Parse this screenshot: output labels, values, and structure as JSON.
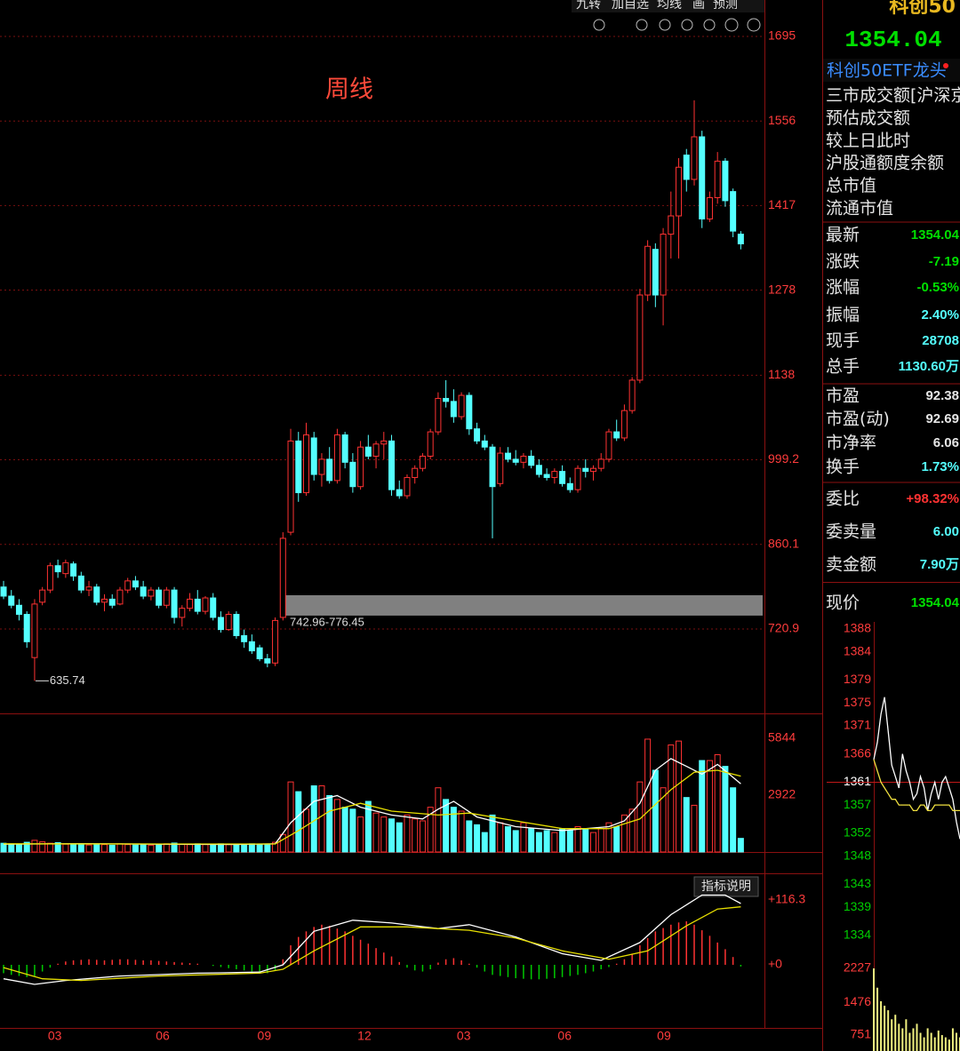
{
  "toolbar": [
    "九转",
    "加自选",
    "均线",
    "画",
    "预测"
  ],
  "indicator_button": "指标说明",
  "chart_data": [
    {
      "type": "candlestick",
      "annotation": "周线",
      "up_color": "#ff3232",
      "down_color": "#54ffff",
      "grid": true,
      "xlim": [
        -0.46,
        98.05
      ],
      "ylim": [
        582.2,
        1754.9
      ],
      "yticks": [
        1695,
        1556,
        1417,
        1278,
        1138,
        999.2,
        860.1,
        720.9
      ],
      "xticks": [
        {
          "value": 6.6,
          "label": "03"
        },
        {
          "value": 20.5,
          "label": "06"
        },
        {
          "value": 33.6,
          "label": "09"
        },
        {
          "value": 46.5,
          "label": "12"
        },
        {
          "value": 59.3,
          "label": "03"
        },
        {
          "value": 72.3,
          "label": "06"
        },
        {
          "value": 85.1,
          "label": "09"
        }
      ],
      "band": {
        "values": [
          742.96,
          776.45
        ],
        "label": "742.96-776.45",
        "color": "#808080"
      },
      "open": [
        790,
        775,
        760,
        745,
        674,
        765,
        785,
        825,
        812,
        828,
        808,
        785,
        790,
        765,
        770,
        762,
        785,
        800,
        790,
        775,
        785,
        760,
        785,
        740,
        755,
        770,
        750,
        772,
        740,
        720,
        745,
        710,
        700,
        690,
        672,
        665,
        740,
        880,
        1030,
        945,
        1035,
        975,
        1000,
        965,
        1040,
        995,
        955,
        1020,
        1005,
        1025,
        1030,
        950,
        940,
        970,
        985,
        1005,
        1045,
        1100,
        1095,
        1070,
        1105,
        1050,
        1030,
        1020,
        960,
        1010,
        1000,
        995,
        1005,
        990,
        975,
        970,
        980,
        960,
        950,
        985,
        980,
        985,
        1000,
        1045,
        1035,
        1080,
        1130,
        1270,
        1345,
        1270,
        1370,
        1400,
        1500,
        1460,
        1530,
        1395,
        1430,
        1490,
        1440,
        1370
      ],
      "high": [
        800,
        785,
        770,
        750,
        770,
        790,
        830,
        835,
        835,
        832,
        815,
        800,
        795,
        778,
        778,
        790,
        805,
        808,
        800,
        790,
        790,
        790,
        790,
        760,
        780,
        785,
        775,
        780,
        750,
        750,
        750,
        720,
        712,
        695,
        680,
        740,
        880,
        1050,
        1045,
        1060,
        1045,
        1010,
        1020,
        1050,
        1045,
        1010,
        1030,
        1040,
        1030,
        1045,
        1040,
        965,
        975,
        990,
        1010,
        1050,
        1110,
        1130,
        1115,
        1110,
        1110,
        1060,
        1040,
        1025,
        1020,
        1020,
        1015,
        1010,
        1015,
        1000,
        985,
        985,
        990,
        970,
        990,
        1000,
        990,
        1010,
        1050,
        1065,
        1090,
        1135,
        1280,
        1360,
        1355,
        1380,
        1440,
        1495,
        1510,
        1590,
        1540,
        1440,
        1505,
        1495,
        1445,
        1375
      ],
      "low": [
        770,
        755,
        735,
        690,
        635.74,
        760,
        780,
        805,
        805,
        800,
        780,
        775,
        760,
        750,
        755,
        760,
        780,
        785,
        770,
        768,
        755,
        755,
        730,
        725,
        750,
        745,
        745,
        735,
        715,
        718,
        705,
        690,
        680,
        668,
        658,
        660,
        735,
        875,
        930,
        940,
        965,
        955,
        960,
        960,
        985,
        945,
        950,
        1000,
        985,
        1000,
        940,
        935,
        935,
        960,
        980,
        1000,
        1040,
        1085,
        1060,
        1065,
        1040,
        1025,
        1015,
        870,
        955,
        995,
        990,
        985,
        985,
        970,
        965,
        960,
        955,
        945,
        945,
        970,
        965,
        980,
        995,
        1030,
        1030,
        1075,
        1125,
        1260,
        1250,
        1220,
        1330,
        1330,
        1440,
        1450,
        1380,
        1390,
        1420,
        1415,
        1365,
        1345
      ],
      "close": [
        775,
        760,
        745,
        700,
        762,
        785,
        825,
        815,
        830,
        808,
        785,
        790,
        765,
        770,
        760,
        785,
        800,
        790,
        775,
        785,
        760,
        785,
        740,
        755,
        770,
        750,
        772,
        740,
        720,
        745,
        710,
        700,
        685,
        672,
        665,
        735,
        870,
        1030,
        945,
        1040,
        975,
        1000,
        965,
        1040,
        995,
        955,
        1020,
        1005,
        1025,
        1030,
        950,
        940,
        970,
        985,
        1005,
        1045,
        1100,
        1095,
        1070,
        1105,
        1050,
        1030,
        1020,
        955,
        1010,
        1000,
        995,
        1005,
        990,
        975,
        970,
        980,
        960,
        950,
        985,
        980,
        985,
        1000,
        1045,
        1035,
        1080,
        1130,
        1270,
        1350,
        1270,
        1370,
        1400,
        1480,
        1460,
        1530,
        1395,
        1430,
        1490,
        1425,
        1375,
        1354.04
      ]
    },
    {
      "type": "volume",
      "xlim": [
        -0.46,
        98.05
      ],
      "ylim": [
        0,
        7122
      ],
      "yticks": [
        5844,
        2922
      ],
      "values": [
        450,
        420,
        380,
        500,
        600,
        520,
        450,
        480,
        400,
        380,
        420,
        360,
        400,
        380,
        350,
        420,
        380,
        360,
        400,
        350,
        380,
        420,
        460,
        400,
        380,
        420,
        380,
        400,
        420,
        380,
        350,
        380,
        420,
        400,
        380,
        500,
        900,
        3600,
        3100,
        2200,
        3400,
        3400,
        2900,
        2700,
        2300,
        2200,
        1800,
        2600,
        2000,
        1800,
        1700,
        1500,
        1900,
        1700,
        1600,
        2300,
        3300,
        2700,
        2300,
        2100,
        1600,
        1400,
        1000,
        1900,
        1500,
        1300,
        1100,
        1500,
        1200,
        1000,
        1100,
        1000,
        1200,
        1100,
        1300,
        1200,
        1000,
        1200,
        1500,
        1300,
        1900,
        2200,
        3600,
        5800,
        4200,
        3300,
        5500,
        5700,
        2800,
        2400,
        4700,
        4700,
        5000,
        4400,
        3300,
        700
      ],
      "series": [
        {
          "color": "#ffffff",
          "x": [
            0,
            10,
            20,
            30,
            35,
            37,
            40,
            43,
            46,
            50,
            54,
            56,
            58,
            61,
            66,
            72,
            78,
            80,
            82,
            84,
            86,
            88,
            90,
            92,
            95
          ],
          "values": [
            400,
            430,
            400,
            390,
            420,
            1500,
            2600,
            2900,
            2300,
            1900,
            1700,
            2200,
            2600,
            1800,
            1300,
            1100,
            1300,
            1600,
            2500,
            4200,
            4800,
            4400,
            4000,
            4500,
            3500
          ]
        },
        {
          "color": "#e8e000",
          "x": [
            0,
            20,
            35,
            38,
            42,
            46,
            50,
            56,
            60,
            66,
            72,
            78,
            82,
            86,
            89,
            92,
            95
          ],
          "values": [
            420,
            410,
            410,
            1100,
            2100,
            2500,
            2100,
            1900,
            2000,
            1600,
            1200,
            1200,
            1700,
            3200,
            4100,
            4200,
            3900
          ]
        }
      ]
    },
    {
      "type": "macd",
      "xlim": [
        -0.46,
        98.05
      ],
      "ylim": [
        -113.1,
        164.1
      ],
      "yticks": [
        {
          "value": 116.3,
          "label": "+116.3"
        },
        {
          "value": 0,
          "label": "+0"
        }
      ],
      "up_color": "#ff3232",
      "down_color": "#00c800",
      "values": [
        -15,
        -18,
        -20,
        -22,
        -20,
        -12,
        -5,
        2,
        6,
        8,
        9,
        10,
        9,
        8,
        9,
        10,
        10,
        9,
        8,
        8,
        7,
        6,
        5,
        4,
        3,
        2,
        0,
        -2,
        -4,
        -6,
        -8,
        -10,
        -12,
        -14,
        -15,
        -10,
        10,
        35,
        50,
        60,
        68,
        72,
        70,
        65,
        60,
        52,
        45,
        38,
        30,
        22,
        15,
        5,
        -5,
        -10,
        -12,
        -8,
        4,
        10,
        12,
        8,
        2,
        -5,
        -12,
        -18,
        -20,
        -22,
        -24,
        -25,
        -26,
        -26,
        -25,
        -24,
        -22,
        -20,
        -18,
        -15,
        -12,
        -8,
        -4,
        2,
        10,
        20,
        35,
        48,
        60,
        66,
        72,
        76,
        78,
        72,
        62,
        52,
        40,
        28,
        14,
        -3
      ],
      "series": [
        {
          "color": "#ffffff",
          "x": [
            0,
            4,
            8,
            15,
            25,
            33,
            36,
            40,
            45,
            50,
            56,
            60,
            66,
            72,
            77,
            82,
            86,
            90,
            93,
            95
          ],
          "values": [
            -25,
            -35,
            -28,
            -20,
            -15,
            -13,
            0,
            60,
            80,
            75,
            65,
            72,
            50,
            20,
            8,
            40,
            90,
            125,
            125,
            110
          ]
        },
        {
          "color": "#e8e000",
          "x": [
            0,
            5,
            10,
            20,
            33,
            36,
            40,
            46,
            52,
            60,
            66,
            72,
            78,
            83,
            88,
            92,
            95
          ],
          "values": [
            -5,
            -25,
            -28,
            -20,
            -15,
            -8,
            25,
            68,
            68,
            62,
            48,
            25,
            10,
            25,
            70,
            100,
            104
          ]
        }
      ]
    },
    {
      "type": "intraday",
      "xlim": [
        0,
        24
      ],
      "ylim": [
        1334,
        1388
      ],
      "grid_value": 1361,
      "yticks": [
        1388,
        1384,
        1379,
        1375,
        1371,
        1366,
        1361,
        1357,
        1352,
        1348,
        1343,
        1339,
        1334
      ],
      "ytick_colors": [
        "#ff3c3c",
        "#ff3c3c",
        "#ff3c3c",
        "#ff3c3c",
        "#ff3c3c",
        "#ff3c3c",
        "#ffffff",
        "#00d000",
        "#00d000",
        "#00d000",
        "#00d000",
        "#00d000",
        "#00d000"
      ],
      "series": [
        {
          "color": "#ffffff",
          "values": [
            1365,
            1368,
            1373,
            1376,
            1370,
            1364,
            1362,
            1360,
            1366,
            1363,
            1361,
            1358,
            1359,
            1362,
            1360,
            1356,
            1359,
            1361,
            1358,
            1361,
            1362,
            1360,
            1358,
            1354,
            1351
          ]
        },
        {
          "color": "#f0e040",
          "values": [
            1365,
            1363,
            1361,
            1360,
            1359,
            1358,
            1358,
            1357,
            1357,
            1357,
            1357,
            1356,
            1356,
            1357,
            1357,
            1356,
            1356,
            1357,
            1357,
            1357,
            1357,
            1357,
            1356,
            1356,
            1356
          ]
        }
      ],
      "volume": {
        "ylim": [
          397,
          2621
        ],
        "yticks": [
          2227,
          1476,
          751
        ],
        "color": "#f0f080",
        "values": [
          2227,
          1800,
          1500,
          1400,
          1300,
          1100,
          1200,
          1000,
          900,
          1100,
          800,
          900,
          1000,
          800,
          700,
          900,
          800,
          700,
          850,
          750,
          700,
          650,
          900,
          800,
          700
        ]
      }
    }
  ],
  "quote": {
    "name": "科创50",
    "price": "1354.04",
    "related": "科创50ETF龙头",
    "info": [
      "三市成交额[沪深京",
      "预估成交额",
      "较上日此时",
      "沪股通额度余额",
      "总市值",
      "流通市值"
    ],
    "rows": [
      {
        "label": "最新",
        "value": "1354.04",
        "color": "#00e000"
      },
      {
        "label": "涨跌",
        "value": "-7.19",
        "color": "#00e000"
      },
      {
        "label": "涨幅",
        "value": "-0.53%",
        "color": "#00e000"
      },
      {
        "label": "振幅",
        "value": "2.40%",
        "color": "#54ffff"
      },
      {
        "label": "现手",
        "value": "28708",
        "color": "#54ffff"
      },
      {
        "label": "总手",
        "value": "1130.60万",
        "color": "#54ffff"
      },
      {
        "label": "市盈",
        "value": "92.38",
        "color": "#e6e6e6"
      },
      {
        "label": "市盈(动)",
        "value": "92.69",
        "color": "#e6e6e6"
      },
      {
        "label": "市净率",
        "value": "6.06",
        "color": "#e6e6e6"
      },
      {
        "label": "换手",
        "value": "1.73%",
        "color": "#54ffff"
      },
      {
        "label": "委比",
        "value": "+98.32%",
        "color": "#ff3232"
      },
      {
        "label": "委卖量",
        "value": "6.00",
        "color": "#54ffff"
      },
      {
        "label": "卖金额",
        "value": "7.90万",
        "color": "#54ffff"
      },
      {
        "label": "现价",
        "value": "1354.04",
        "color": "#00e000"
      }
    ]
  }
}
